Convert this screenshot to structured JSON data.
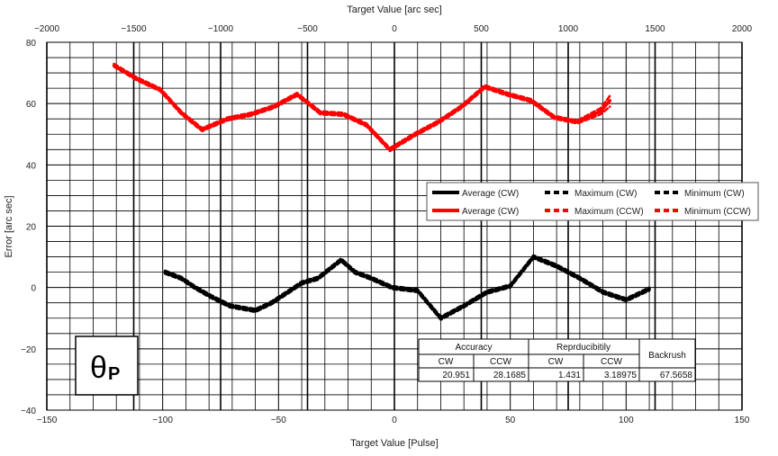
{
  "chart_data": {
    "type": "line",
    "xlabel_bottom": "Target Value [Pulse]",
    "xlabel_top": "Target Value [arc sec]",
    "ylabel": "Error [arc sec]",
    "xlim": [
      -150,
      150
    ],
    "ylim": [
      -40,
      80
    ],
    "x2lim": [
      -2000,
      2000
    ],
    "x_ticks": [
      "−150",
      "−100",
      "−50",
      "0",
      "50",
      "100",
      "150"
    ],
    "x2_ticks": [
      "−2000",
      "−1500",
      "−1000",
      "−500",
      "0",
      "500",
      "1000",
      "1500",
      "2000"
    ],
    "y_ticks": [
      "−40",
      "−20",
      "0",
      "20",
      "40",
      "60",
      "80"
    ],
    "grid": true,
    "legend_position": "right",
    "series": [
      {
        "name": "Average (CW)",
        "color": "#000000",
        "style": "solid",
        "points": [
          [
            -99,
            5
          ],
          [
            -92,
            3
          ],
          [
            -86,
            0
          ],
          [
            -79,
            -3
          ],
          [
            -71,
            -6
          ],
          [
            -60,
            -7.5
          ],
          [
            -53,
            -5
          ],
          [
            -47,
            -2
          ],
          [
            -40,
            1.5
          ],
          [
            -33,
            3
          ],
          [
            -23,
            9
          ],
          [
            -17,
            5
          ],
          [
            -10,
            3
          ],
          [
            -1,
            0
          ],
          [
            10,
            -1
          ],
          [
            20,
            -10
          ],
          [
            30,
            -6
          ],
          [
            40,
            -1.5
          ],
          [
            50,
            0.5
          ],
          [
            60,
            10
          ],
          [
            70,
            7
          ],
          [
            80,
            3
          ],
          [
            90,
            -1.5
          ],
          [
            100,
            -4
          ],
          [
            110,
            -0.5
          ]
        ]
      },
      {
        "name": "Maximum (CW)",
        "color": "#000000",
        "style": "dashed",
        "points": [
          [
            -99,
            5.5
          ],
          [
            -92,
            3.5
          ],
          [
            -86,
            0.5
          ],
          [
            -79,
            -2.5
          ],
          [
            -71,
            -5.5
          ],
          [
            -60,
            -7
          ],
          [
            -53,
            -4.5
          ],
          [
            -47,
            -1.5
          ],
          [
            -40,
            2
          ],
          [
            -33,
            3.5
          ],
          [
            -23,
            9.5
          ],
          [
            -17,
            5.5
          ],
          [
            -10,
            3.5
          ],
          [
            -1,
            0.5
          ],
          [
            10,
            -0.5
          ],
          [
            20,
            -9.5
          ],
          [
            30,
            -5.5
          ],
          [
            40,
            -1
          ],
          [
            50,
            1
          ],
          [
            60,
            10.5
          ],
          [
            70,
            7.5
          ],
          [
            80,
            3.5
          ],
          [
            90,
            -1
          ],
          [
            100,
            -3.5
          ],
          [
            110,
            0
          ]
        ]
      },
      {
        "name": "Minimum (CW)",
        "color": "#000000",
        "style": "dashed",
        "points": [
          [
            -99,
            4.5
          ],
          [
            -92,
            2.5
          ],
          [
            -86,
            -0.5
          ],
          [
            -79,
            -3.5
          ],
          [
            -71,
            -6.5
          ],
          [
            -60,
            -8
          ],
          [
            -53,
            -5.5
          ],
          [
            -47,
            -2.5
          ],
          [
            -40,
            1
          ],
          [
            -33,
            2.5
          ],
          [
            -23,
            8.5
          ],
          [
            -17,
            4.5
          ],
          [
            -10,
            2.5
          ],
          [
            -1,
            -0.5
          ],
          [
            10,
            -1.5
          ],
          [
            20,
            -10.5
          ],
          [
            30,
            -6.5
          ],
          [
            40,
            -2
          ],
          [
            50,
            0
          ],
          [
            60,
            9.5
          ],
          [
            70,
            6.5
          ],
          [
            80,
            2.5
          ],
          [
            90,
            -2
          ],
          [
            100,
            -4.5
          ],
          [
            110,
            -1
          ]
        ]
      },
      {
        "name": "Average (CW)",
        "color": "#ff0000",
        "style": "solid",
        "points": [
          [
            -121,
            72.5
          ],
          [
            -111,
            68
          ],
          [
            -101,
            64.5
          ],
          [
            -92,
            57
          ],
          [
            -83,
            51.5
          ],
          [
            -72,
            55
          ],
          [
            -62,
            56.5
          ],
          [
            -52,
            59
          ],
          [
            -42,
            63
          ],
          [
            -32,
            57
          ],
          [
            -22,
            56.5
          ],
          [
            -12,
            53
          ],
          [
            -2,
            45
          ],
          [
            9,
            50
          ],
          [
            19,
            54
          ],
          [
            29,
            59
          ],
          [
            39,
            65.5
          ],
          [
            49,
            63
          ],
          [
            59,
            61
          ],
          [
            69,
            55.5
          ],
          [
            79,
            54
          ],
          [
            89,
            57.5
          ],
          [
            93,
            61
          ]
        ]
      },
      {
        "name": "Maximum (CCW)",
        "color": "#ff0000",
        "style": "dashed",
        "points": [
          [
            -121,
            73
          ],
          [
            -111,
            68.5
          ],
          [
            -101,
            65
          ],
          [
            -92,
            57.5
          ],
          [
            -83,
            52
          ],
          [
            -72,
            55.5
          ],
          [
            -62,
            57
          ],
          [
            -52,
            59.5
          ],
          [
            -42,
            63.5
          ],
          [
            -32,
            57.5
          ],
          [
            -22,
            57
          ],
          [
            -12,
            53.5
          ],
          [
            -2,
            45.5
          ],
          [
            9,
            50.5
          ],
          [
            19,
            54.5
          ],
          [
            29,
            59.5
          ],
          [
            39,
            66
          ],
          [
            49,
            63.5
          ],
          [
            59,
            61.5
          ],
          [
            69,
            56
          ],
          [
            79,
            54.5
          ],
          [
            89,
            58.5
          ],
          [
            93,
            62.5
          ]
        ]
      },
      {
        "name": "Minimum (CCW)",
        "color": "#ff0000",
        "style": "dashed",
        "points": [
          [
            -121,
            72
          ],
          [
            -111,
            67.5
          ],
          [
            -101,
            64
          ],
          [
            -92,
            56.5
          ],
          [
            -83,
            51
          ],
          [
            -72,
            54.5
          ],
          [
            -62,
            56
          ],
          [
            -52,
            58.5
          ],
          [
            -42,
            62.5
          ],
          [
            -32,
            56.5
          ],
          [
            -22,
            56
          ],
          [
            -12,
            52.5
          ],
          [
            -2,
            44.5
          ],
          [
            9,
            49.5
          ],
          [
            19,
            53.5
          ],
          [
            29,
            58.5
          ],
          [
            39,
            65
          ],
          [
            49,
            62.5
          ],
          [
            59,
            60.5
          ],
          [
            69,
            55
          ],
          [
            79,
            53.5
          ],
          [
            89,
            56.5
          ],
          [
            93,
            59
          ]
        ]
      }
    ],
    "stats_table": {
      "headers": [
        "Accuracy",
        "Reprducibitily",
        "Backrush"
      ],
      "subheaders": [
        "CW",
        "CCW",
        "CW",
        "CCW"
      ],
      "values": [
        "20.951",
        "28.1685",
        "1.431",
        "3.18975",
        "67.5658"
      ]
    },
    "badge": {
      "main": "θ",
      "sub": "P"
    }
  }
}
